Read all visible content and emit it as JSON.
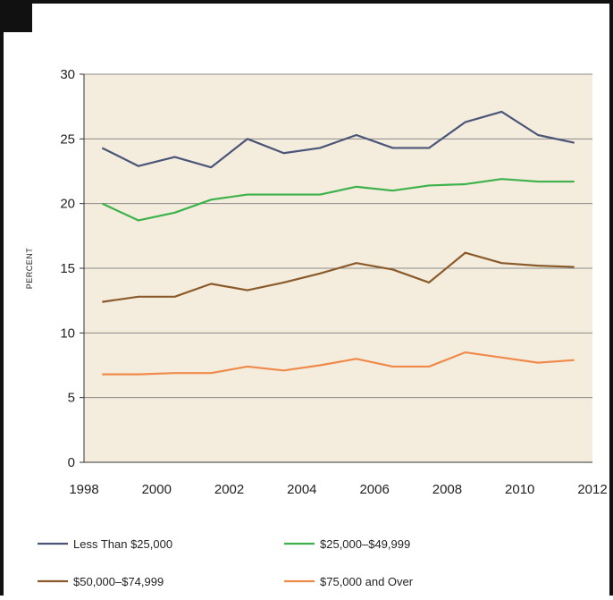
{
  "chart_data": {
    "type": "line",
    "title": "",
    "xlabel": "",
    "ylabel": "PERCENT",
    "ylim": [
      0,
      30
    ],
    "xlim": [
      1998,
      2012
    ],
    "x_ticks": [
      "1998",
      "2000",
      "2002",
      "2004",
      "2006",
      "2008",
      "2010",
      "2012"
    ],
    "y_ticks": [
      "0",
      "5",
      "10",
      "15",
      "20",
      "25",
      "30"
    ],
    "grid": "horizontal",
    "legend_position": "bottom",
    "plot_background": "#f4eddd",
    "x": [
      1998.5,
      1999.5,
      2000.5,
      2001.5,
      2002.5,
      2003.5,
      2004.5,
      2005.5,
      2006.5,
      2007.5,
      2008.5,
      2009.5,
      2010.5,
      2011.5
    ],
    "series": [
      {
        "name": "Less Than $25,000",
        "color": "#4a5577",
        "values": [
          24.3,
          22.9,
          23.6,
          22.8,
          25.0,
          23.9,
          24.3,
          25.3,
          24.3,
          24.3,
          26.3,
          27.1,
          25.3,
          24.7
        ]
      },
      {
        "name": "$25,000–$49,999",
        "color": "#3db14a",
        "values": [
          20.0,
          18.7,
          19.3,
          20.3,
          20.7,
          20.7,
          20.7,
          21.3,
          21.0,
          21.4,
          21.5,
          21.9,
          21.7,
          21.7
        ]
      },
      {
        "name": "$50,000–$74,999",
        "color": "#8b5a2b",
        "values": [
          12.4,
          12.8,
          12.8,
          13.8,
          13.3,
          13.9,
          14.6,
          15.4,
          14.9,
          13.9,
          16.2,
          15.4,
          15.2,
          15.1
        ]
      },
      {
        "name": "$75,000 and Over",
        "color": "#f08a4b",
        "values": [
          6.8,
          6.8,
          6.9,
          6.9,
          7.4,
          7.1,
          7.5,
          8.0,
          7.4,
          7.4,
          8.5,
          8.1,
          7.7,
          7.9
        ]
      }
    ]
  }
}
